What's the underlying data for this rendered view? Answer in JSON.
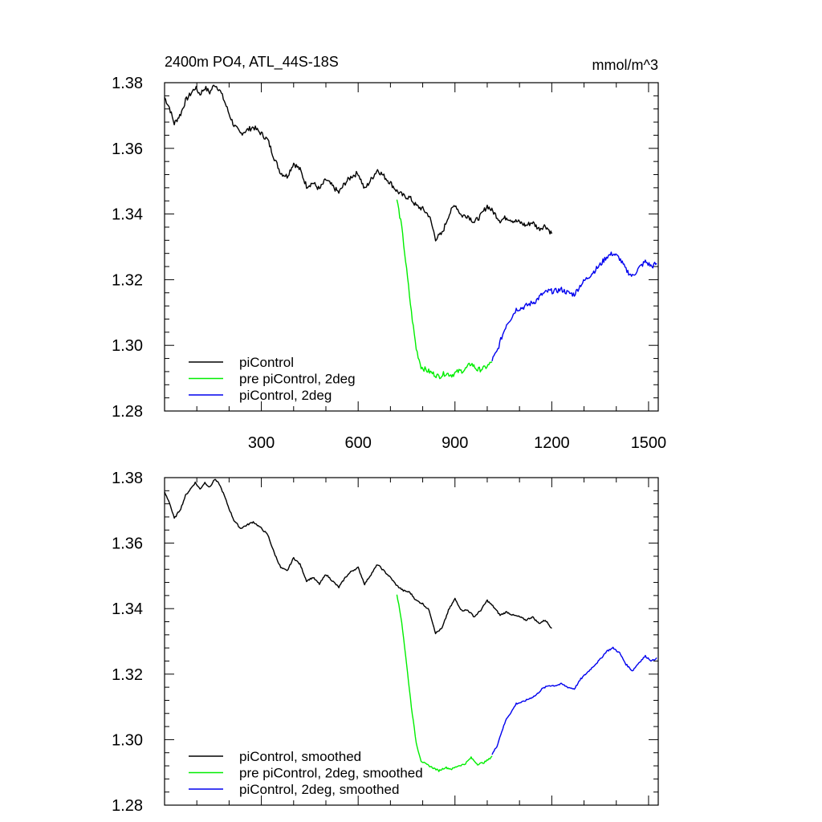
{
  "chart_data": [
    {
      "type": "line",
      "title": "2400m PO4, ATL_44S-18S",
      "units": "mmol/m^3",
      "xlim": [
        0,
        1530
      ],
      "ylim": [
        1.28,
        1.38
      ],
      "xticks": [
        300,
        600,
        900,
        1200,
        1500
      ],
      "xtick_labels": [
        "300",
        "600",
        "900",
        "1200",
        "1500"
      ],
      "yticks": [
        1.28,
        1.3,
        1.32,
        1.34,
        1.36,
        1.38
      ],
      "ytick_labels": [
        "1.28",
        "1.30",
        "1.32",
        "1.34",
        "1.36",
        "1.38"
      ],
      "grid": false,
      "legend_position": "bottom-left",
      "series": [
        {
          "name": "piControl",
          "color": "#000000",
          "x": [
            0,
            15,
            30,
            50,
            65,
            80,
            95,
            110,
            125,
            140,
            155,
            170,
            185,
            200,
            215,
            235,
            255,
            275,
            300,
            320,
            340,
            360,
            380,
            400,
            420,
            440,
            460,
            480,
            500,
            520,
            540,
            560,
            580,
            600,
            620,
            640,
            660,
            680,
            700,
            720,
            740,
            760,
            780,
            800,
            820,
            840,
            860,
            880,
            900,
            920,
            940,
            960,
            980,
            1000,
            1020,
            1040,
            1060,
            1080,
            1100,
            1120,
            1140,
            1160,
            1180,
            1200
          ],
          "y": [
            1.3755,
            1.3725,
            1.3675,
            1.3705,
            1.3745,
            1.3765,
            1.3785,
            1.3765,
            1.3785,
            1.377,
            1.3795,
            1.378,
            1.3745,
            1.3705,
            1.367,
            1.3645,
            1.3655,
            1.3665,
            1.3645,
            1.3625,
            1.357,
            1.3525,
            1.3515,
            1.3555,
            1.3535,
            1.3485,
            1.3495,
            1.3475,
            1.3505,
            1.3485,
            1.3465,
            1.3495,
            1.3515,
            1.3525,
            1.3475,
            1.3505,
            1.3535,
            1.3515,
            1.3495,
            1.347,
            1.3455,
            1.345,
            1.3425,
            1.3415,
            1.3395,
            1.3325,
            1.334,
            1.3395,
            1.343,
            1.3395,
            1.3395,
            1.3375,
            1.3395,
            1.3425,
            1.3405,
            1.338,
            1.339,
            1.338,
            1.3375,
            1.3365,
            1.3375,
            1.3355,
            1.3365,
            1.334
          ]
        },
        {
          "name": "pre piControl, 2deg",
          "color": "#00ee00",
          "x": [
            720,
            735,
            750,
            765,
            780,
            795,
            810,
            830,
            850,
            870,
            890,
            910,
            930,
            950,
            970,
            990,
            1005,
            1015
          ],
          "y": [
            1.3445,
            1.336,
            1.323,
            1.31,
            1.299,
            1.2935,
            1.2925,
            1.2915,
            1.2905,
            1.2915,
            1.291,
            1.292,
            1.2925,
            1.2945,
            1.2925,
            1.293,
            1.294,
            1.295
          ]
        },
        {
          "name": "piControl, 2deg",
          "color": "#0000ee",
          "x": [
            1015,
            1030,
            1045,
            1060,
            1075,
            1090,
            1110,
            1130,
            1150,
            1170,
            1190,
            1210,
            1230,
            1250,
            1270,
            1290,
            1310,
            1330,
            1350,
            1370,
            1390,
            1410,
            1430,
            1450,
            1470,
            1490,
            1510,
            1525
          ],
          "y": [
            1.2955,
            1.298,
            1.3025,
            1.3065,
            1.3085,
            1.311,
            1.3115,
            1.3125,
            1.3135,
            1.3155,
            1.3165,
            1.3165,
            1.317,
            1.316,
            1.3155,
            1.3185,
            1.3205,
            1.3225,
            1.3245,
            1.327,
            1.328,
            1.3265,
            1.323,
            1.321,
            1.3235,
            1.3255,
            1.324,
            1.325
          ]
        }
      ]
    },
    {
      "type": "line",
      "title": "",
      "xlim": [
        0,
        1530
      ],
      "ylim": [
        1.28,
        1.38
      ],
      "xticks": [
        300,
        600,
        900,
        1200,
        1500
      ],
      "yticks": [
        1.28,
        1.3,
        1.32,
        1.34,
        1.36,
        1.38
      ],
      "ytick_labels": [
        "1.28",
        "1.30",
        "1.32",
        "1.34",
        "1.36",
        "1.38"
      ],
      "grid": false,
      "legend_position": "bottom-left",
      "series": [
        {
          "name": "piControl, smoothed",
          "color": "#000000",
          "x": [
            0,
            15,
            30,
            50,
            65,
            80,
            95,
            110,
            125,
            140,
            155,
            170,
            185,
            200,
            215,
            235,
            255,
            275,
            300,
            320,
            340,
            360,
            380,
            400,
            420,
            440,
            460,
            480,
            500,
            520,
            540,
            560,
            580,
            600,
            620,
            640,
            660,
            680,
            700,
            720,
            740,
            760,
            780,
            800,
            820,
            840,
            860,
            880,
            900,
            920,
            940,
            960,
            980,
            1000,
            1020,
            1040,
            1060,
            1080,
            1100,
            1120,
            1140,
            1160,
            1180,
            1200
          ],
          "y": [
            1.3755,
            1.3725,
            1.3675,
            1.3705,
            1.3745,
            1.3765,
            1.3785,
            1.3765,
            1.3785,
            1.377,
            1.3795,
            1.378,
            1.3745,
            1.3705,
            1.367,
            1.3645,
            1.3655,
            1.3665,
            1.3645,
            1.3625,
            1.357,
            1.3525,
            1.3515,
            1.3555,
            1.3535,
            1.3485,
            1.3495,
            1.3475,
            1.3505,
            1.3485,
            1.3465,
            1.3495,
            1.3515,
            1.3525,
            1.3475,
            1.3505,
            1.3535,
            1.3515,
            1.3495,
            1.347,
            1.3455,
            1.345,
            1.3425,
            1.3415,
            1.3395,
            1.3325,
            1.334,
            1.3395,
            1.343,
            1.3395,
            1.3395,
            1.3375,
            1.3395,
            1.3425,
            1.3405,
            1.338,
            1.339,
            1.338,
            1.3375,
            1.3365,
            1.3375,
            1.3355,
            1.3365,
            1.334
          ]
        },
        {
          "name": "pre piControl, 2deg, smoothed",
          "color": "#00ee00",
          "x": [
            720,
            735,
            750,
            765,
            780,
            795,
            810,
            830,
            850,
            870,
            890,
            910,
            930,
            950,
            970,
            990,
            1005,
            1015
          ],
          "y": [
            1.3445,
            1.336,
            1.323,
            1.31,
            1.299,
            1.2935,
            1.2925,
            1.2915,
            1.2905,
            1.2915,
            1.291,
            1.292,
            1.2925,
            1.2945,
            1.2925,
            1.293,
            1.294,
            1.295
          ]
        },
        {
          "name": "piControl, 2deg, smoothed",
          "color": "#0000ee",
          "x": [
            1015,
            1030,
            1045,
            1060,
            1075,
            1090,
            1110,
            1130,
            1150,
            1170,
            1190,
            1210,
            1230,
            1250,
            1270,
            1290,
            1310,
            1330,
            1350,
            1370,
            1390,
            1410,
            1430,
            1450,
            1470,
            1490,
            1510,
            1525
          ],
          "y": [
            1.2955,
            1.298,
            1.3025,
            1.3065,
            1.3085,
            1.311,
            1.3115,
            1.3125,
            1.3135,
            1.3155,
            1.3165,
            1.3165,
            1.317,
            1.316,
            1.3155,
            1.3185,
            1.3205,
            1.3225,
            1.3245,
            1.327,
            1.328,
            1.3265,
            1.323,
            1.321,
            1.3235,
            1.3255,
            1.324,
            1.325
          ]
        }
      ]
    }
  ]
}
